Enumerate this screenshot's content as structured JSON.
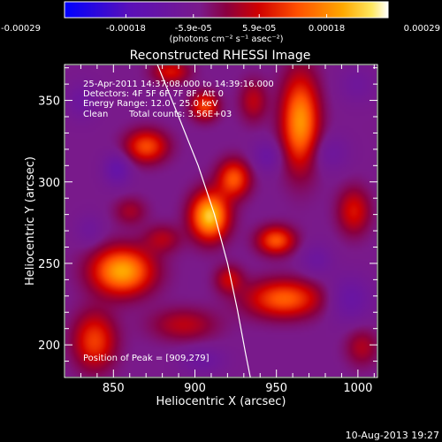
{
  "chart_data": {
    "type": "heatmap",
    "title": "Reconstructed RHESSI Image",
    "xlabel": "Heliocentric X (arcsec)",
    "ylabel": "Heliocentric Y (arcsec)",
    "xlim": [
      820,
      1012
    ],
    "ylim": [
      180,
      372
    ],
    "x_ticks": [
      850,
      900,
      950,
      1000
    ],
    "y_ticks": [
      200,
      250,
      300,
      350
    ],
    "colorbar": {
      "ticks": [
        "-0.00029",
        "-0.00018",
        "-5.9e-05",
        "5.9e-05",
        "0.00018",
        "0.00029"
      ],
      "tick_values": [
        -0.00029,
        -0.00018,
        -5.9e-05,
        5.9e-05,
        0.00018,
        0.00029
      ],
      "range": [
        -0.00029,
        0.00029
      ],
      "label": "(photons cm⁻² s⁻¹ asec⁻²)"
    },
    "annotations": [
      "25-Apr-2011 14:37:08.000 to 14:39:16.000",
      "Detectors: 4F 5F 6F 7F 8F, Att 0",
      "Energy Range: 12.0 - 25.0 keV",
      "Clean",
      "Total counts: 3.56E+03",
      "Position of Peak = [909,279]"
    ],
    "peak": [
      909,
      279
    ],
    "limb_curve": [
      [
        877,
        372
      ],
      [
        890,
        340
      ],
      [
        902,
        310
      ],
      [
        912,
        280
      ],
      [
        920,
        250
      ],
      [
        926,
        222
      ],
      [
        931,
        195
      ],
      [
        934,
        180
      ]
    ],
    "sources": [
      {
        "x": 909,
        "y": 279,
        "sx": 8,
        "sy": 10,
        "amp": 0.00029
      },
      {
        "x": 855,
        "y": 245,
        "sx": 13,
        "sy": 10,
        "amp": 0.00026
      },
      {
        "x": 965,
        "y": 337,
        "sx": 8,
        "sy": 20,
        "amp": 0.00024
      },
      {
        "x": 924,
        "y": 302,
        "sx": 7,
        "sy": 8,
        "amp": 0.00018
      },
      {
        "x": 870,
        "y": 322,
        "sx": 9,
        "sy": 7,
        "amp": 0.00017
      },
      {
        "x": 906,
        "y": 347,
        "sx": 6,
        "sy": 6,
        "amp": 0.00016
      },
      {
        "x": 950,
        "y": 264,
        "sx": 8,
        "sy": 6,
        "amp": 0.00018
      },
      {
        "x": 955,
        "y": 228,
        "sx": 16,
        "sy": 8,
        "amp": 0.00019
      },
      {
        "x": 838,
        "y": 202,
        "sx": 9,
        "sy": 12,
        "amp": 0.00016
      },
      {
        "x": 893,
        "y": 212,
        "sx": 14,
        "sy": 7,
        "amp": 9e-05
      },
      {
        "x": 998,
        "y": 282,
        "sx": 7,
        "sy": 10,
        "amp": 0.00012
      },
      {
        "x": 1003,
        "y": 198,
        "sx": 7,
        "sy": 8,
        "amp": 8e-05
      },
      {
        "x": 885,
        "y": 368,
        "sx": 8,
        "sy": 5,
        "amp": 0.00012
      },
      {
        "x": 936,
        "y": 350,
        "sx": 6,
        "sy": 9,
        "amp": 9e-05
      },
      {
        "x": 880,
        "y": 265,
        "sx": 8,
        "sy": 6,
        "amp": 8e-05
      },
      {
        "x": 860,
        "y": 282,
        "sx": 7,
        "sy": 6,
        "amp": 7e-05
      },
      {
        "x": 921,
        "y": 240,
        "sx": 6,
        "sy": 6,
        "amp": 0.0001
      },
      {
        "x": 852,
        "y": 308,
        "sx": 6,
        "sy": 7,
        "amp": -8e-05
      },
      {
        "x": 945,
        "y": 316,
        "sx": 7,
        "sy": 7,
        "amp": -6e-05
      },
      {
        "x": 982,
        "y": 318,
        "sx": 9,
        "sy": 8,
        "amp": -5e-05
      },
      {
        "x": 995,
        "y": 228,
        "sx": 10,
        "sy": 10,
        "amp": -7e-05
      },
      {
        "x": 975,
        "y": 252,
        "sx": 7,
        "sy": 7,
        "amp": -5e-05
      },
      {
        "x": 905,
        "y": 190,
        "sx": 10,
        "sy": 6,
        "amp": -5e-05
      },
      {
        "x": 830,
        "y": 350,
        "sx": 7,
        "sy": 8,
        "amp": -5e-05
      },
      {
        "x": 835,
        "y": 270,
        "sx": 6,
        "sy": 7,
        "amp": -4e-05
      },
      {
        "x": 1000,
        "y": 360,
        "sx": 8,
        "sy": 8,
        "amp": -4e-05
      }
    ],
    "background": -5e-05
  },
  "footer": {
    "timestamp": "10-Aug-2013 19:27"
  }
}
